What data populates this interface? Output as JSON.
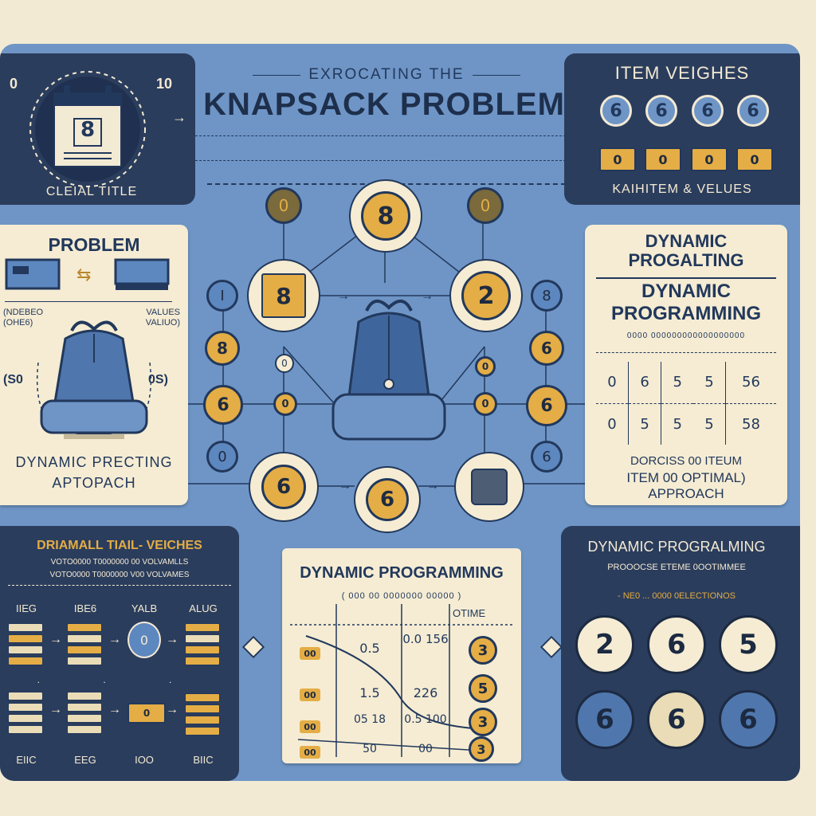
{
  "header": {
    "subtitle": "EXROCATING THE",
    "title": "KNAPSACK PROBLEM",
    "left_label": "CLEIAL TITLE",
    "left_badge_a": "0",
    "left_badge_b": "10",
    "calendar_value": "8"
  },
  "items_panel": {
    "title": "ITEM VEIGHES",
    "weights": [
      "6",
      "6",
      "6",
      "6"
    ],
    "values": [
      "0",
      "0",
      "0",
      "0"
    ],
    "footer": "KAIHITEM & VELUES"
  },
  "problem_panel": {
    "title": "PROBLEM",
    "left_caption": "(NDEBEO (OHE6)",
    "right_caption": "VALUES VALIUO)",
    "left_value": "(S0",
    "right_value": "0S)",
    "footer_1": "DYNAMIC PRECTING",
    "footer_2": "APTOPACH"
  },
  "center_graph": {
    "top_node": "8",
    "mid_left_node": "8",
    "mid_right_node": "2",
    "bottom_left_node": "6",
    "bottom_mid_node": "6",
    "small_top_left": "0",
    "small_top_right": "0",
    "left_column": [
      "I",
      "8",
      "6",
      "0"
    ],
    "right_column": [
      "8",
      "6",
      "6",
      "6"
    ],
    "inner_small": [
      "0",
      "0",
      "0",
      "0"
    ]
  },
  "dp_right_panel": {
    "title_1": "DYNAMIC",
    "title_2": "PROGALTING",
    "heading_1": "DYNAMIC",
    "heading_2": "PROGRAMMING",
    "caption": "0000 000000000000000000",
    "rows": [
      [
        "0",
        "6",
        "5",
        "5",
        "56"
      ],
      [
        "0",
        "5",
        "5",
        "5",
        "58"
      ]
    ],
    "footer_1": "DORCISS 00 ITEUM",
    "footer_2": "ITEM 00 OPTIMAL)",
    "footer_3": "APPROACH"
  },
  "bottom_left_panel": {
    "title": "DRIAMALL TIAIL- VEICHES",
    "sub_1": "VOTO0000 T0000000 00 VOLVAMLLS",
    "sub_2": "VOTO0000 T0000000 V00 VOLVAMES",
    "col_labels": [
      "IIEG",
      "IBE6",
      "YALB",
      "ALUG"
    ],
    "row_labels": [
      "EIIC",
      "EEG",
      "IOO",
      "BIIC"
    ],
    "circle_value": "0",
    "box_value": "0"
  },
  "bottom_center_table": {
    "title": "DYNAMIC PROGRAMMING",
    "caption": "( 000 00 0000000 00000 )",
    "optimal_header": "OTIME",
    "rows": [
      {
        "tag": "00",
        "a": "0.5",
        "b": "0.0 156",
        "opt": "3"
      },
      {
        "tag": "00",
        "a": "1.5",
        "b": "226",
        "opt": "5"
      },
      {
        "tag": "00",
        "a": "05 18",
        "b": "0.5 100",
        "opt": "3"
      },
      {
        "tag": "00",
        "a": "50",
        "b": "00",
        "opt": "3"
      }
    ]
  },
  "bottom_right_panel": {
    "title": "DYNAMIC PROGRALMING",
    "sub": "PROOOCSE ETEME 0OOTIMMEE",
    "sub_2": "- NE0 ... 0000 0ELECTIONOS",
    "disks_top": [
      "2",
      "6",
      "5"
    ],
    "disks_bottom": [
      "6",
      "6",
      "6"
    ]
  },
  "colors": {
    "board": "#6e95c6",
    "dark_panel": "#2b3d5c",
    "cream": "#f5ecd3",
    "gold": "#e4ad45",
    "navy": "#22385c"
  }
}
